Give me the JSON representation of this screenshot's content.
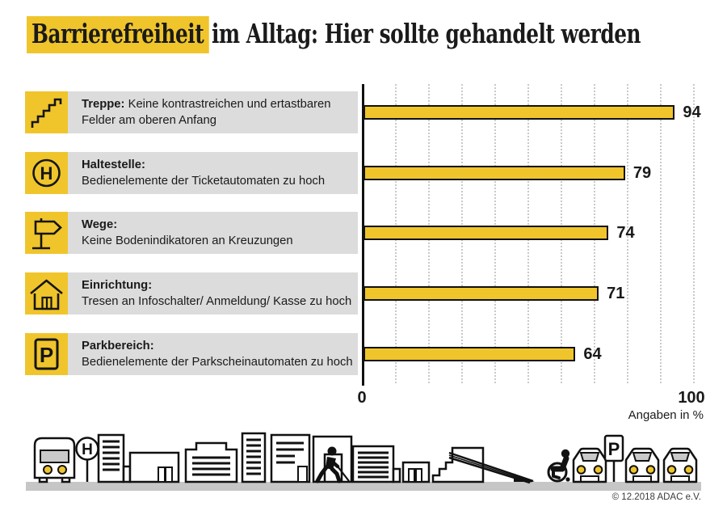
{
  "title": {
    "highlight": "Barrierefreiheit",
    "rest": "im Alltag: Hier sollte gehandelt werden"
  },
  "colors": {
    "accent_yellow": "#F0C52C",
    "label_background": "#DCDCDC",
    "bar_outline": "#111111",
    "grid_dotted": "#C9C9C9",
    "ground_gray": "#C6C6C6"
  },
  "chart_data": {
    "type": "bar",
    "orientation": "horizontal",
    "title": "Barrierefreiheit im Alltag: Hier sollte gehandelt werden",
    "categories": [
      "Treppe: Keine kontrastreichen und ertastbaren Felder am oberen Anfang",
      "Haltestelle: Bedienelemente der Ticketautomaten zu hoch",
      "Wege: Keine Bodenindikatoren an Kreuzungen",
      "Einrichtung: Tresen an Infoschalter/ Anmeldung/ Kasse zu hoch",
      "Parkbereich: Bedienelemente der Parkscheinautomaten zu hoch"
    ],
    "values": [
      94,
      79,
      74,
      71,
      64
    ],
    "xlim": [
      0,
      100
    ],
    "x_tick_labels": [
      "0",
      "100"
    ],
    "grid": "vertical dotted lines every 10",
    "unit_note": "Angaben in %",
    "bar_color": "#F0C52C"
  },
  "rows": [
    {
      "icon": "stairs-icon",
      "heading": "Treppe:",
      "text": "Keine kontrastreichen und ertastbaren",
      "text2": "Felder am oberen Anfang",
      "value": 94
    },
    {
      "icon": "bus-stop-h-icon",
      "heading": "Haltestelle:",
      "text": "Bedienelemente der Ticketautomaten zu hoch",
      "value": 79
    },
    {
      "icon": "signpost-icon",
      "heading": "Wege:",
      "text": "Keine Bodenindikatoren an Kreuzungen",
      "value": 74
    },
    {
      "icon": "facility-house-icon",
      "heading": "Einrichtung:",
      "text": "Tresen an Infoschalter/ Anmeldung/ Kasse zu hoch",
      "value": 71
    },
    {
      "icon": "parking-p-icon",
      "heading": "Parkbereich:",
      "text": "Bedienelemente der Parkscheinautomaten zu hoch",
      "value": 64
    }
  ],
  "axis": {
    "x_min_label": "0",
    "x_max_label": "100",
    "note": "Angaben in %"
  },
  "illustration": {
    "h_sign": "H",
    "p_sign": "P"
  },
  "footer": {
    "copyright": "© 12.2018 ADAC e.V."
  }
}
